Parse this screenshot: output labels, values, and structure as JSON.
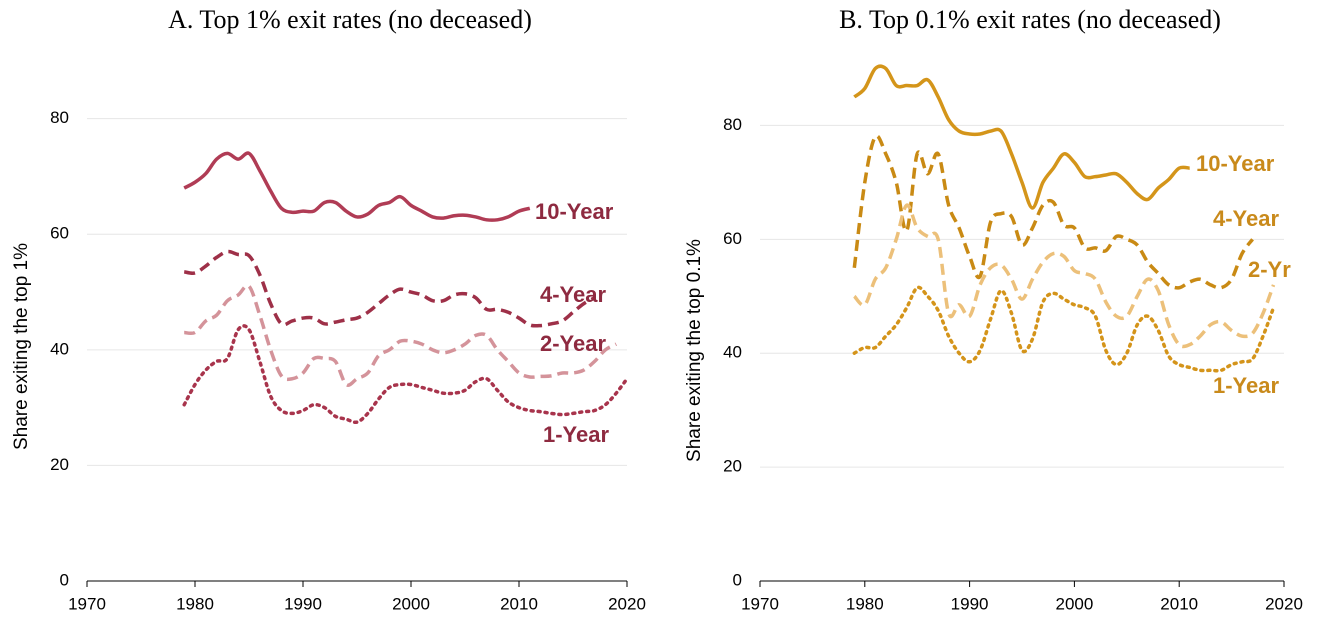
{
  "chart_data": [
    {
      "type": "line",
      "title": "A. Top 1% exit rates (no deceased)",
      "y_label": "Share exiting the top 1%",
      "x": [
        1979,
        1980,
        1981,
        1982,
        1983,
        1984,
        1985,
        1986,
        1987,
        1988,
        1989,
        1990,
        1991,
        1992,
        1993,
        1994,
        1995,
        1996,
        1997,
        1998,
        1999,
        2000,
        2001,
        2002,
        2003,
        2004,
        2005,
        2006,
        2007,
        2008,
        2009,
        2010,
        2011,
        2012,
        2013,
        2014,
        2015,
        2016,
        2017,
        2018,
        2019,
        2020
      ],
      "xlim": [
        1970,
        2020
      ],
      "xticks": [
        1970,
        1980,
        1990,
        2000,
        2010,
        2020
      ],
      "ylim": [
        0,
        95
      ],
      "yticks": [
        0,
        20,
        40,
        60,
        80
      ],
      "grid": true,
      "label_color": "#8e2a40",
      "series": [
        {
          "name": "10-Year",
          "color": "#b03c55",
          "line_style": "solid",
          "values": [
            68,
            69,
            70.5,
            73,
            74,
            73,
            74,
            71,
            67.5,
            64.5,
            63.8,
            64,
            64,
            65.5,
            65.5,
            64,
            63,
            63.5,
            65,
            65.5,
            66.5,
            65,
            64,
            63,
            62.8,
            63.2,
            63.3,
            63,
            62.5,
            62.5,
            63,
            64,
            64.5,
            null,
            null,
            null,
            null,
            null,
            null,
            null,
            null,
            null
          ]
        },
        {
          "name": "4-Year",
          "color": "#9e3048",
          "line_style": "dashed",
          "values": [
            53.5,
            53.3,
            54.5,
            56,
            57,
            56.5,
            56.3,
            53,
            48,
            44.5,
            45,
            45.5,
            45.5,
            44.5,
            44.8,
            45.2,
            45.5,
            46.5,
            48,
            49.5,
            50.5,
            50,
            49.5,
            48.5,
            48.5,
            49.5,
            49.7,
            49,
            47,
            47,
            46.5,
            45.5,
            44.3,
            44.2,
            44.5,
            45,
            46.5,
            48,
            49,
            null,
            null,
            null
          ]
        },
        {
          "name": "2-Year",
          "color": "#d4939a",
          "line_style": "dashed",
          "values": [
            43,
            43,
            45,
            46,
            48.5,
            49.5,
            51,
            46,
            40,
            35.5,
            35,
            36,
            38.5,
            38.5,
            38,
            34,
            35,
            36,
            39,
            40,
            41.5,
            41.5,
            41,
            40,
            39.5,
            40,
            41,
            42.5,
            42.5,
            40,
            38,
            36,
            35.3,
            35.4,
            35.5,
            36,
            36,
            36.5,
            38,
            40,
            41,
            null
          ]
        },
        {
          "name": "1-Year",
          "color": "#a8344c",
          "line_style": "dotted",
          "values": [
            30.5,
            34,
            36.5,
            38,
            38.5,
            43.5,
            43.5,
            38,
            32,
            29.5,
            29,
            29.5,
            30.5,
            30,
            28.5,
            28,
            27.5,
            29,
            31.5,
            33.5,
            34,
            34,
            33.5,
            33,
            32.5,
            32.5,
            33,
            34.5,
            35,
            33,
            31,
            30,
            29.5,
            29.3,
            29,
            28.8,
            29,
            29.3,
            29.5,
            30.5,
            32.5,
            35
          ]
        }
      ]
    },
    {
      "type": "line",
      "title": "B. Top 0.1% exit rates (no deceased)",
      "y_label": "Share exiting the top 0.1%",
      "x": [
        1979,
        1980,
        1981,
        1982,
        1983,
        1984,
        1985,
        1986,
        1987,
        1988,
        1989,
        1990,
        1991,
        1992,
        1993,
        1994,
        1995,
        1996,
        1997,
        1998,
        1999,
        2000,
        2001,
        2002,
        2003,
        2004,
        2005,
        2006,
        2007,
        2008,
        2009,
        2010,
        2011,
        2012,
        2013,
        2014,
        2015,
        2016,
        2017,
        2018,
        2019,
        2020
      ],
      "xlim": [
        1970,
        2020
      ],
      "xticks": [
        1970,
        1980,
        1990,
        2000,
        2010,
        2020
      ],
      "ylim": [
        0,
        95
      ],
      "yticks": [
        0,
        20,
        40,
        60,
        80
      ],
      "grid": true,
      "label_color": "#c98a1b",
      "series": [
        {
          "name": "10-Year",
          "color": "#d4951a",
          "line_style": "solid",
          "values": [
            85,
            86.5,
            90,
            90,
            87,
            87,
            87,
            88,
            85,
            81,
            79,
            78.5,
            78.5,
            79,
            79,
            75,
            70,
            65.5,
            70,
            72.5,
            75,
            73.5,
            71,
            71,
            71.3,
            71.5,
            70,
            68,
            67,
            69,
            70.5,
            72.5,
            72.5,
            null,
            null,
            null,
            null,
            null,
            null,
            null,
            null,
            null
          ]
        },
        {
          "name": "4-Year",
          "color": "#c98a14",
          "line_style": "dashed",
          "values": [
            55,
            70,
            78,
            75,
            70,
            61.5,
            75,
            71.5,
            75,
            66,
            62,
            57,
            53.5,
            63,
            64.5,
            64,
            59,
            62,
            66,
            66.5,
            62.5,
            62,
            58.5,
            58.5,
            58,
            60.5,
            60,
            59,
            56,
            54,
            52,
            51.5,
            52.5,
            53,
            52,
            51.5,
            53,
            57.5,
            60,
            null,
            null,
            null
          ]
        },
        {
          "name": "2-Yr",
          "color": "#ecc07a",
          "line_style": "dashed",
          "values": [
            50,
            48.5,
            53,
            55,
            60,
            66,
            62,
            60.5,
            60,
            47,
            48.5,
            46.5,
            52,
            55,
            55.5,
            53,
            49.5,
            53,
            56,
            57.5,
            57,
            54.5,
            54,
            53,
            49,
            46.5,
            46.5,
            50,
            53,
            51,
            45,
            41.5,
            41.5,
            43,
            45,
            45.5,
            44,
            43,
            43.5,
            47,
            52,
            null
          ]
        },
        {
          "name": "1-Year",
          "color": "#d4941a",
          "line_style": "dotted",
          "values": [
            40,
            41,
            41,
            43,
            45,
            48,
            51.5,
            50,
            47.5,
            43,
            40,
            38.5,
            40.5,
            46,
            51,
            47,
            40.5,
            42.5,
            49,
            50.5,
            49.5,
            48.5,
            48,
            46.5,
            40.5,
            38,
            40,
            45,
            46.5,
            44,
            39.5,
            38,
            37.5,
            37,
            37,
            37,
            38,
            38.5,
            39,
            43,
            48,
            null
          ]
        }
      ]
    }
  ]
}
